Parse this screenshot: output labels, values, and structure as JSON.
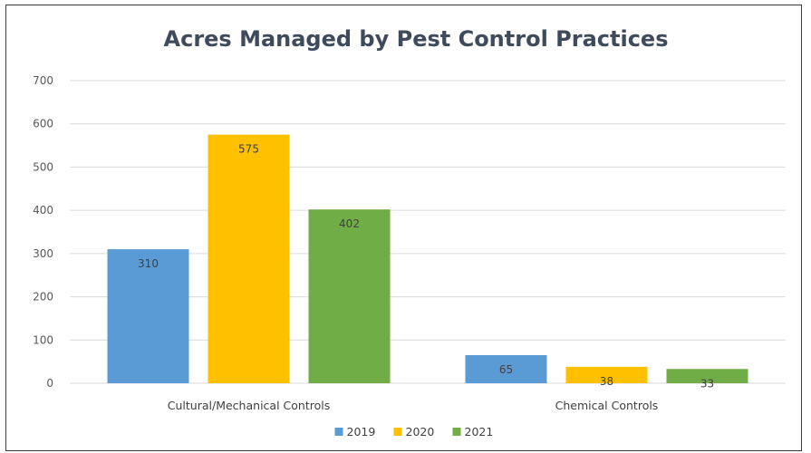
{
  "chart_data": {
    "type": "bar",
    "title": "Acres Managed by Pest Control Practices",
    "xlabel": "",
    "ylabel": "",
    "ylim": [
      0,
      700
    ],
    "yticks": [
      0,
      100,
      200,
      300,
      400,
      500,
      600,
      700
    ],
    "categories": [
      "Cultural/Mechanical Controls",
      "Chemical Controls"
    ],
    "series": [
      {
        "name": "2019",
        "color": "#5b9bd5",
        "values": [
          310,
          65
        ]
      },
      {
        "name": "2020",
        "color": "#ffc000",
        "values": [
          575,
          38
        ]
      },
      {
        "name": "2021",
        "color": "#70ad47",
        "values": [
          402,
          33
        ]
      }
    ],
    "data_labels": true,
    "grid": true,
    "legend": "bottom-center"
  }
}
